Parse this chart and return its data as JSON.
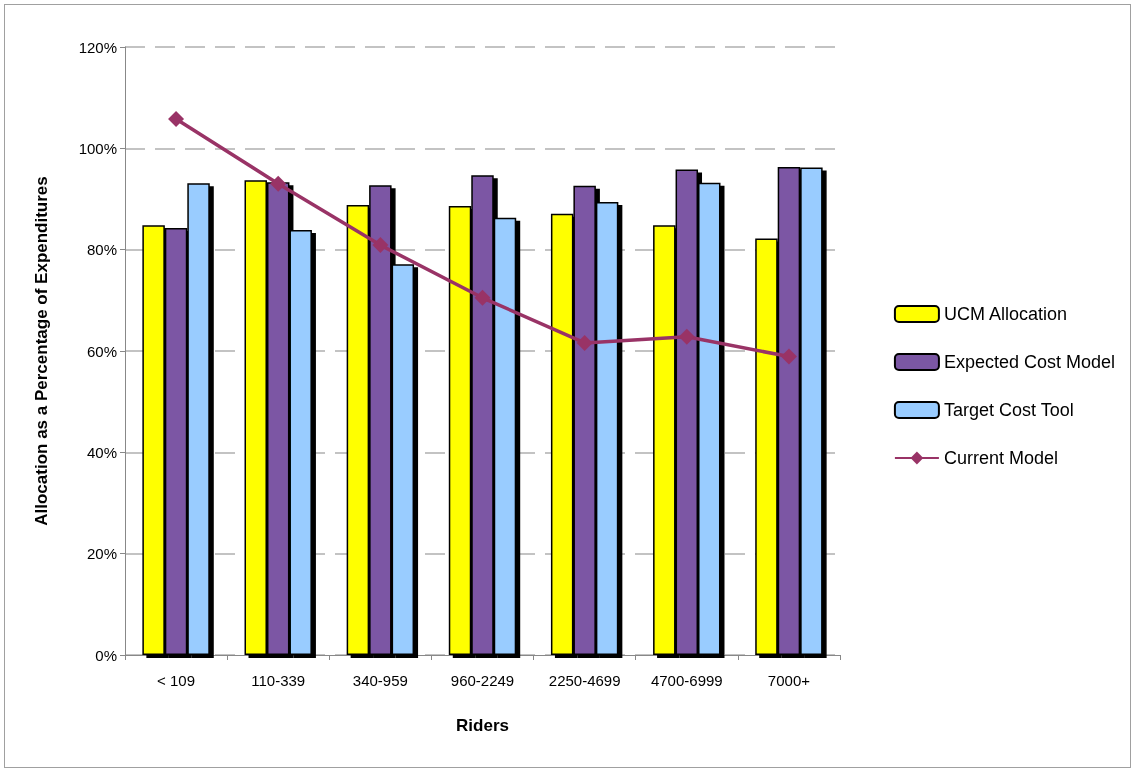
{
  "chart_data": {
    "type": "bar",
    "xlabel": "Riders",
    "ylabel": "Allocation as a Percentage of Expenditures",
    "categories": [
      "< 109",
      "110-339",
      "340-959",
      "960-2249",
      "2250-4699",
      "4700-6999",
      "7000+"
    ],
    "series": [
      {
        "name": "UCM Allocation",
        "color": "#ffff00",
        "values": [
          84.8,
          93.7,
          88.8,
          88.6,
          87.1,
          84.8,
          82.2
        ]
      },
      {
        "name": "Expected Cost Model",
        "color": "#7b57a4",
        "values": [
          84.3,
          93.3,
          92.7,
          94.7,
          92.6,
          95.8,
          96.3
        ]
      },
      {
        "name": "Target Cost Tool",
        "color": "#99ccff",
        "values": [
          93.1,
          83.9,
          77.1,
          86.3,
          89.4,
          93.2,
          96.2
        ]
      },
      {
        "name": "Current Model",
        "type": "line",
        "color": "#993366",
        "marker": "diamond",
        "line_style": "solid",
        "values": [
          105.8,
          93.0,
          80.9,
          70.5,
          61.6,
          62.8,
          58.9
        ]
      }
    ],
    "ylim": [
      0,
      120
    ],
    "yticks": [
      {
        "value": 0,
        "label": "0%"
      },
      {
        "value": 20,
        "label": "20%"
      },
      {
        "value": 40,
        "label": "40%"
      },
      {
        "value": 60,
        "label": "60%"
      },
      {
        "value": 80,
        "label": "80%"
      },
      {
        "value": 100,
        "label": "100%"
      },
      {
        "value": 120,
        "label": "120%"
      }
    ],
    "grid": "y",
    "legend": "right"
  }
}
